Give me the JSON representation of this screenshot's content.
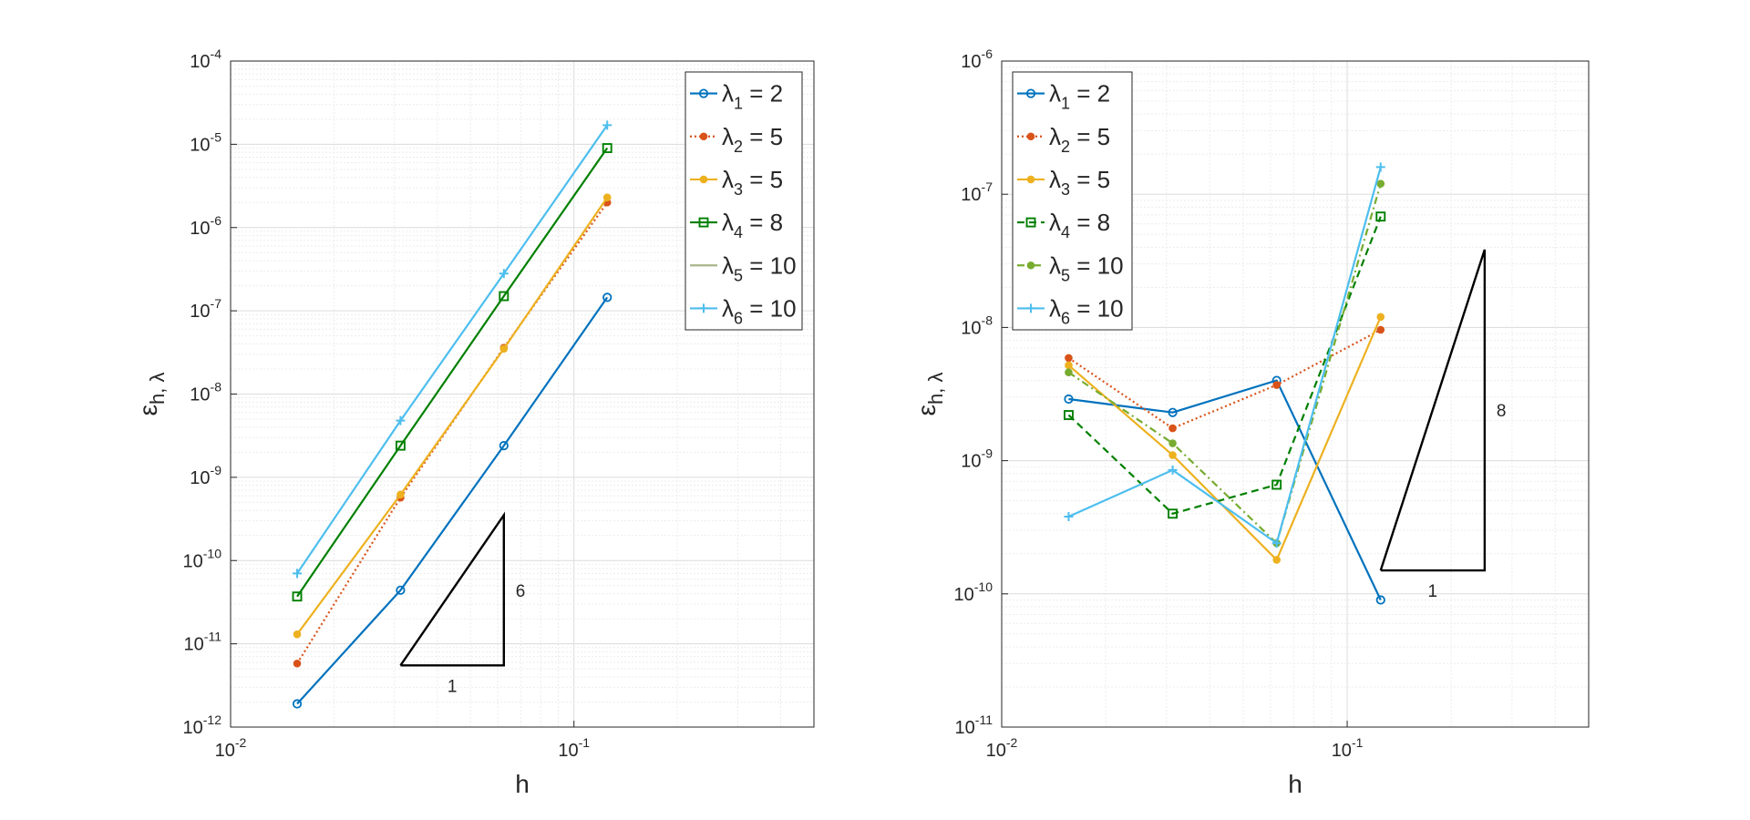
{
  "chart_data": [
    {
      "type": "line",
      "xscale": "log",
      "yscale": "log",
      "xlabel": "h",
      "ylabel": "ε_{h, λ}",
      "xlim": [
        0.01,
        0.5
      ],
      "ylim": [
        1e-12,
        0.0001
      ],
      "grid": true,
      "legend_position": "top-right",
      "x": [
        0.015625,
        0.03125,
        0.0625,
        0.125
      ],
      "x_ticks": [
        0.01,
        0.1
      ],
      "x_tick_labels": [
        {
          "base": "10",
          "exp": "-2"
        },
        {
          "base": "10",
          "exp": "-1"
        }
      ],
      "y_ticks": [
        1e-12,
        1e-11,
        1e-10,
        1e-09,
        1e-08,
        1e-07,
        1e-06,
        1e-05,
        0.0001
      ],
      "y_tick_labels": [
        {
          "base": "10",
          "exp": "-12"
        },
        {
          "base": "10",
          "exp": "-11"
        },
        {
          "base": "10",
          "exp": "-10"
        },
        {
          "base": "10",
          "exp": "-9"
        },
        {
          "base": "10",
          "exp": "-8"
        },
        {
          "base": "10",
          "exp": "-7"
        },
        {
          "base": "10",
          "exp": "-6"
        },
        {
          "base": "10",
          "exp": "-5"
        },
        {
          "base": "10",
          "exp": "-4"
        }
      ],
      "series": [
        {
          "name": "λ_1 = 2",
          "sym": "λ",
          "sub": "1",
          "value_text": " = 2",
          "color": "#0072BD",
          "dash": "solid",
          "marker": "circle",
          "values": [
            1.9e-12,
            4.4e-11,
            2.4e-09,
            1.45e-07
          ]
        },
        {
          "name": "λ_2 = 5",
          "sym": "λ",
          "sub": "2",
          "value_text": " = 5",
          "color": "#D95319",
          "dash": "dotted",
          "marker": "dot",
          "values": [
            5.8e-12,
            5.7e-10,
            3.6e-08,
            2e-06
          ]
        },
        {
          "name": "λ_3 = 5",
          "sym": "λ",
          "sub": "3",
          "value_text": " = 5",
          "color": "#EDB120",
          "dash": "solid",
          "marker": "dot",
          "values": [
            1.3e-11,
            6.2e-10,
            3.5e-08,
            2.3e-06
          ]
        },
        {
          "name": "λ_4 = 8",
          "sym": "λ",
          "sub": "4",
          "value_text": " = 8",
          "color": "#008000",
          "dash": "solid",
          "marker": "square",
          "values": [
            3.7e-11,
            2.4e-09,
            1.5e-07,
            9e-06
          ]
        },
        {
          "name": "λ_5 = 10",
          "sym": "λ",
          "sub": "5",
          "value_text": " = 10",
          "color": "#A9B48A",
          "dash": "solid",
          "marker": "none",
          "values": [
            null,
            null,
            null,
            null
          ]
        },
        {
          "name": "λ_6 = 10",
          "sym": "λ",
          "sub": "6",
          "value_text": " = 10",
          "color": "#4DBEEE",
          "dash": "solid",
          "marker": "plus",
          "values": [
            7e-11,
            4.8e-09,
            2.8e-07,
            1.7e-05
          ]
        }
      ],
      "slope_triangle": {
        "x_left": 0.03125,
        "x_right": 0.0625,
        "y_low": 5.5e-12,
        "run_label": "1",
        "rise_label": "6",
        "slope": 6
      }
    },
    {
      "type": "line",
      "xscale": "log",
      "yscale": "log",
      "xlabel": "h",
      "ylabel": "ε_{h, λ}",
      "xlim": [
        0.01,
        0.5
      ],
      "ylim": [
        1e-11,
        1e-06
      ],
      "grid": true,
      "legend_position": "top-left",
      "x": [
        0.015625,
        0.03125,
        0.0625,
        0.125
      ],
      "x_ticks": [
        0.01,
        0.1
      ],
      "x_tick_labels": [
        {
          "base": "10",
          "exp": "-2"
        },
        {
          "base": "10",
          "exp": "-1"
        }
      ],
      "y_ticks": [
        1e-11,
        1e-10,
        1e-09,
        1e-08,
        1e-07,
        1e-06
      ],
      "y_tick_labels": [
        {
          "base": "10",
          "exp": "-11"
        },
        {
          "base": "10",
          "exp": "-10"
        },
        {
          "base": "10",
          "exp": "-9"
        },
        {
          "base": "10",
          "exp": "-8"
        },
        {
          "base": "10",
          "exp": "-7"
        },
        {
          "base": "10",
          "exp": "-6"
        }
      ],
      "series": [
        {
          "name": "λ_1 = 2",
          "sym": "λ",
          "sub": "1",
          "value_text": " = 2",
          "color": "#0072BD",
          "dash": "solid",
          "marker": "circle",
          "values": [
            2.9e-09,
            2.3e-09,
            4e-09,
            9e-11
          ]
        },
        {
          "name": "λ_2 = 5",
          "sym": "λ",
          "sub": "2",
          "value_text": " = 5",
          "color": "#D95319",
          "dash": "dotted",
          "marker": "dot",
          "values": [
            5.9e-09,
            1.75e-09,
            3.7e-09,
            9.6e-09
          ]
        },
        {
          "name": "λ_3 = 5",
          "sym": "λ",
          "sub": "3",
          "value_text": " = 5",
          "color": "#EDB120",
          "dash": "solid",
          "marker": "dot",
          "values": [
            5.2e-09,
            1.1e-09,
            1.8e-10,
            1.2e-08
          ]
        },
        {
          "name": "λ_4 = 8",
          "sym": "λ",
          "sub": "4",
          "value_text": " = 8",
          "color": "#008000",
          "dash": "dashed",
          "marker": "square",
          "values": [
            2.2e-09,
            4e-10,
            6.6e-10,
            6.8e-08
          ]
        },
        {
          "name": "λ_5 = 10",
          "sym": "λ",
          "sub": "5",
          "value_text": " = 10",
          "color": "#77AC30",
          "dash": "dashdot",
          "marker": "dot",
          "values": [
            4.6e-09,
            1.35e-09,
            2.4e-10,
            1.2e-07
          ]
        },
        {
          "name": "λ_6 = 10",
          "sym": "λ",
          "sub": "6",
          "value_text": " = 10",
          "color": "#4DBEEE",
          "dash": "solid",
          "marker": "plus",
          "values": [
            3.8e-10,
            8.5e-10,
            2.4e-10,
            1.6e-07
          ]
        }
      ],
      "slope_triangle": {
        "x_left": 0.125,
        "x_right": 0.25,
        "y_low": 1.5e-10,
        "run_label": "1",
        "rise_label": "8",
        "slope": 8
      }
    }
  ]
}
